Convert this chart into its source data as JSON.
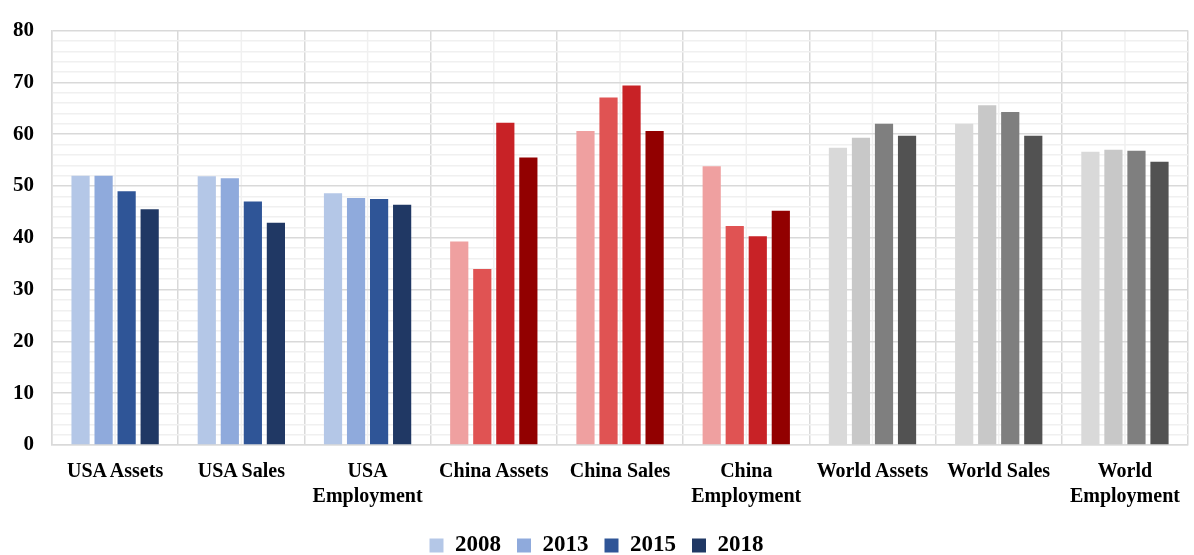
{
  "chart_data": {
    "type": "bar",
    "categories": [
      "USA Assets",
      "USA Sales",
      "USA Employment",
      "China Assets",
      "China Sales",
      "China Employment",
      "World Assets",
      "World Sales",
      "World Employment"
    ],
    "series": [
      {
        "name": "2008",
        "color": "#b4c7e7",
        "colors": [
          "#b4c7e7",
          "#b4c7e7",
          "#b4c7e7",
          "#efa0a0",
          "#efa0a0",
          "#efa0a0",
          "#d9d9d9",
          "#d9d9d9",
          "#d9d9d9"
        ],
        "values": [
          52.0,
          51.9,
          48.6,
          39.3,
          60.6,
          53.8,
          57.4,
          62.0,
          56.6
        ]
      },
      {
        "name": "2013",
        "color": "#8faadc",
        "colors": [
          "#8faadc",
          "#8faadc",
          "#8faadc",
          "#e05353",
          "#e05353",
          "#e05353",
          "#c8c8c8",
          "#c8c8c8",
          "#c8c8c8"
        ],
        "values": [
          52.0,
          51.5,
          47.7,
          34.0,
          67.1,
          42.3,
          59.3,
          65.6,
          57.0
        ]
      },
      {
        "name": "2015",
        "color": "#2f5597",
        "colors": [
          "#2f5597",
          "#2f5597",
          "#2f5597",
          "#c82226",
          "#c82226",
          "#c82226",
          "#7f7f7f",
          "#7f7f7f",
          "#7f7f7f"
        ],
        "values": [
          49.0,
          47.0,
          47.5,
          62.2,
          69.4,
          40.3,
          62.0,
          64.3,
          56.8
        ]
      },
      {
        "name": "2018",
        "color": "#203864",
        "colors": [
          "#203864",
          "#203864",
          "#203864",
          "#920000",
          "#920000",
          "#920000",
          "#525252",
          "#525252",
          "#525252"
        ],
        "values": [
          45.5,
          42.9,
          46.4,
          55.5,
          60.6,
          45.2,
          59.7,
          59.7,
          54.7
        ]
      }
    ],
    "ylim": [
      0,
      80
    ],
    "yticks": [
      0,
      {
        "value": 2,
        "label": null
      },
      {
        "value": 4,
        "label": null
      },
      {
        "value": 6,
        "label": null
      },
      {
        "value": 8,
        "label": null
      },
      10,
      {
        "value": 12,
        "label": null
      },
      {
        "value": 14,
        "label": null
      },
      {
        "value": 16,
        "label": null
      },
      {
        "value": 18,
        "label": null
      },
      20,
      {
        "value": 22,
        "label": null
      },
      {
        "value": 24,
        "label": null
      },
      {
        "value": 26,
        "label": null
      },
      {
        "value": 28,
        "label": null
      },
      30,
      {
        "value": 32,
        "label": null
      },
      {
        "value": 34,
        "label": null
      },
      {
        "value": 36,
        "label": null
      },
      {
        "value": 38,
        "label": null
      },
      40,
      {
        "value": 42,
        "label": null
      },
      {
        "value": 44,
        "label": null
      },
      {
        "value": 46,
        "label": null
      },
      {
        "value": 48,
        "label": null
      },
      50,
      {
        "value": 52,
        "label": null
      },
      {
        "value": 54,
        "label": null
      },
      {
        "value": 56,
        "label": null
      },
      {
        "value": 58,
        "label": null
      },
      60,
      {
        "value": 62,
        "label": null
      },
      {
        "value": 64,
        "label": null
      },
      {
        "value": 66,
        "label": null
      },
      {
        "value": 68,
        "label": null
      },
      70,
      {
        "value": 72,
        "label": null
      },
      {
        "value": 74,
        "label": null
      },
      {
        "value": 76,
        "label": null
      },
      {
        "value": 78,
        "label": null
      },
      80
    ],
    "grid": true,
    "legend": "bottom"
  }
}
